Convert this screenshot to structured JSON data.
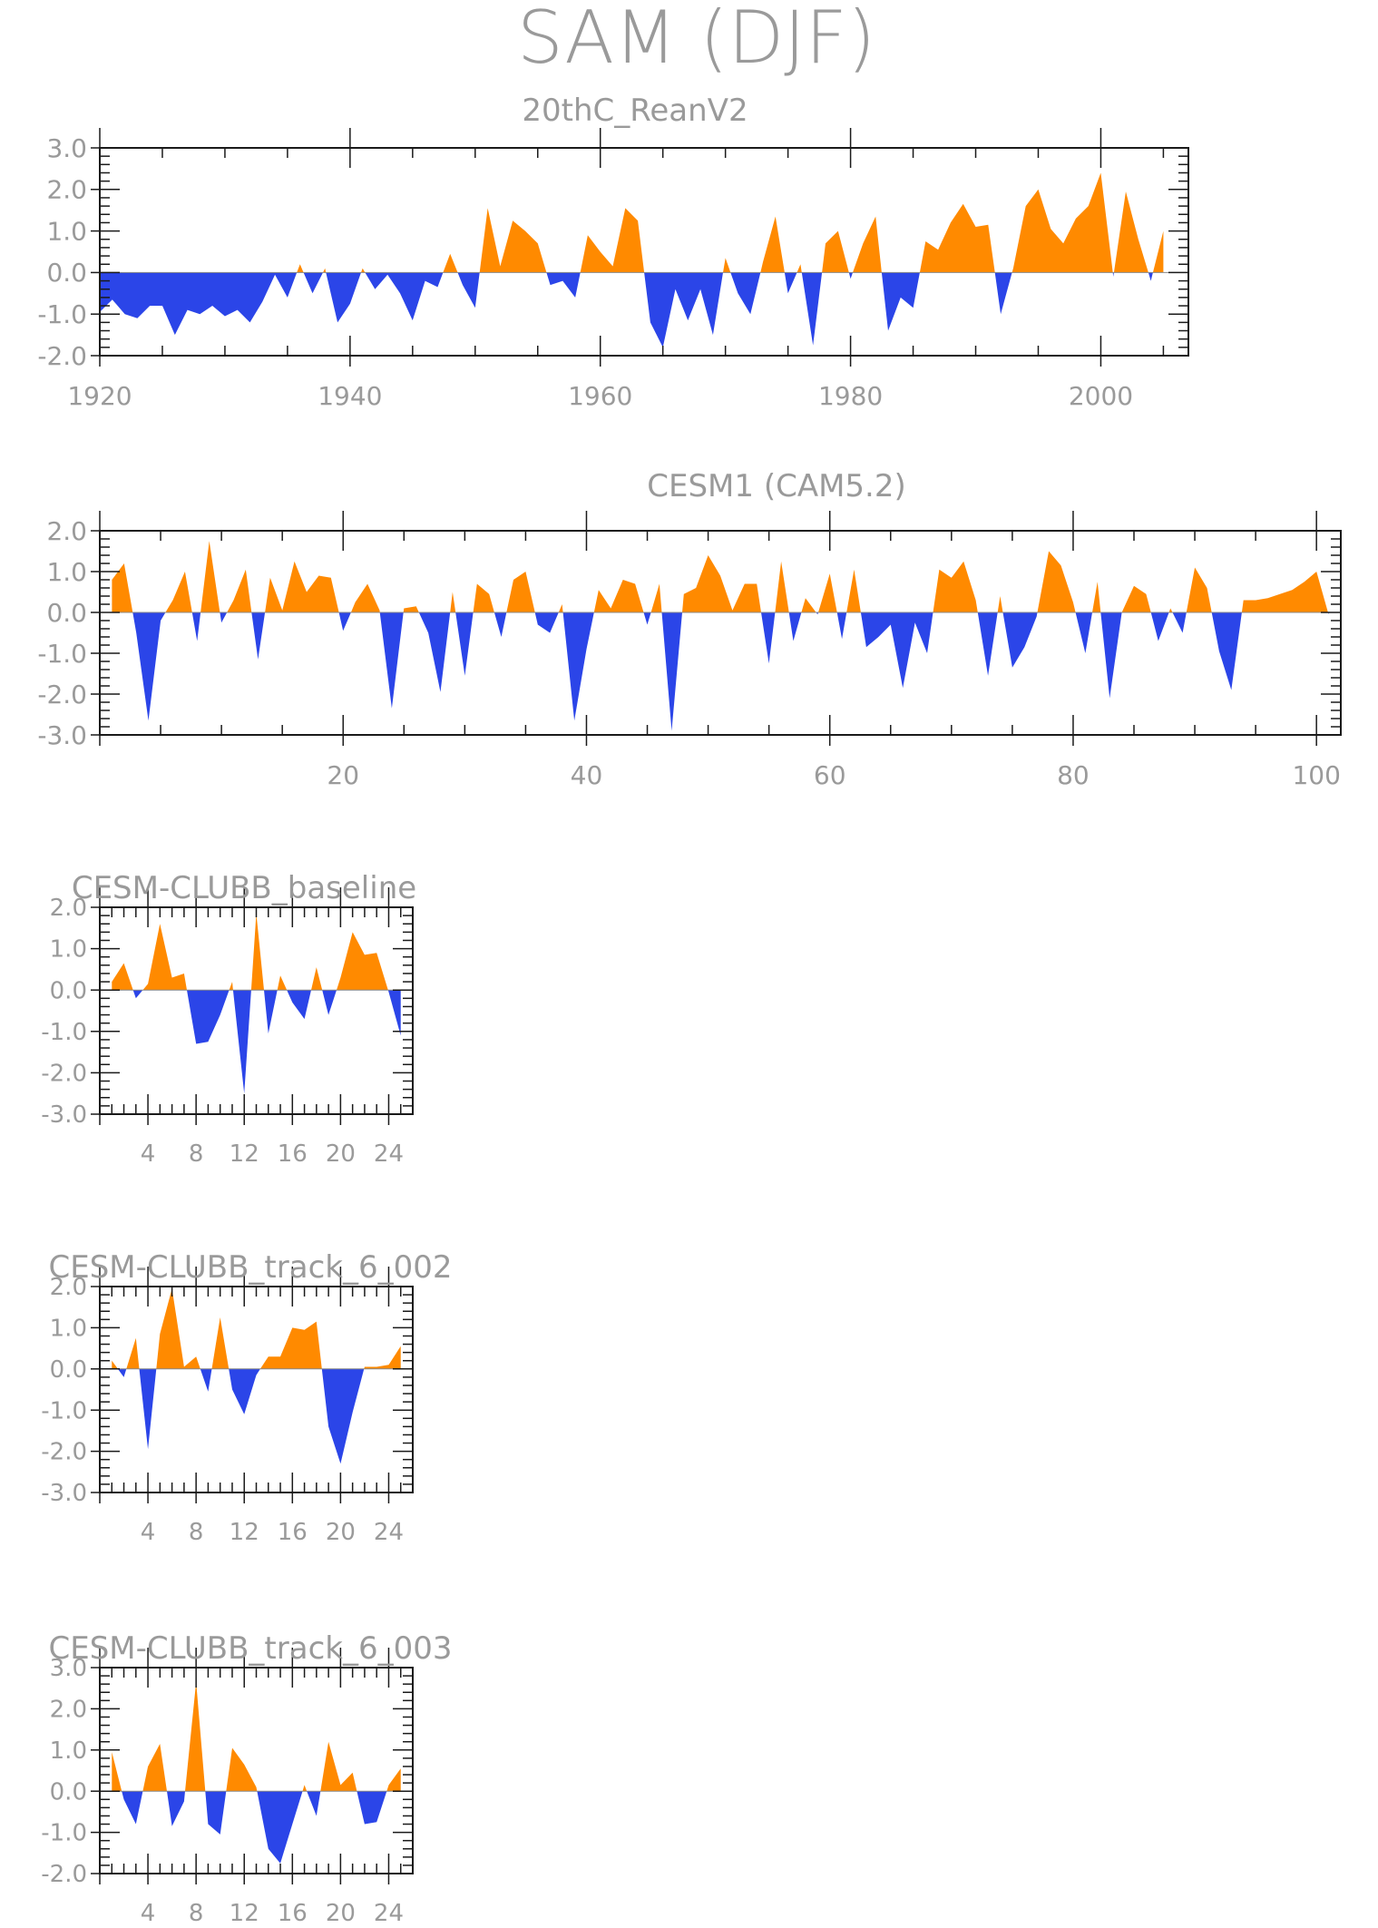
{
  "figure_title": "SAM (DJF)",
  "colors": {
    "positive": "#ff8a00",
    "negative": "#2b45e8",
    "frame": "#1a1a1a",
    "text": "#9a9a9a"
  },
  "chart_data": [
    {
      "type": "area",
      "title": "20thC_ReanV2",
      "baseline": 0,
      "ylim": [
        -2.0,
        3.0
      ],
      "yticks": [
        "3.0",
        "2.0",
        "1.0",
        "0.0",
        "-1.0",
        "-2.0"
      ],
      "xlim": [
        1920,
        2007
      ],
      "xticks": [
        "1920",
        "1940",
        "1960",
        "1980",
        "2000"
      ],
      "x": [
        1920,
        1921,
        1922,
        1923,
        1924,
        1925,
        1926,
        1927,
        1928,
        1929,
        1930,
        1931,
        1932,
        1933,
        1934,
        1935,
        1936,
        1937,
        1938,
        1939,
        1940,
        1941,
        1942,
        1943,
        1944,
        1945,
        1946,
        1947,
        1948,
        1949,
        1950,
        1951,
        1952,
        1953,
        1954,
        1955,
        1956,
        1957,
        1958,
        1959,
        1960,
        1961,
        1962,
        1963,
        1964,
        1965,
        1966,
        1967,
        1968,
        1969,
        1970,
        1971,
        1972,
        1973,
        1974,
        1975,
        1976,
        1977,
        1978,
        1979,
        1980,
        1981,
        1982,
        1983,
        1984,
        1985,
        1986,
        1987,
        1988,
        1989,
        1990,
        1991,
        1992,
        1993,
        1994,
        1995,
        1996,
        1997,
        1998,
        1999,
        2000,
        2001,
        2002,
        2003,
        2004,
        2005
      ],
      "values": [
        -0.95,
        -0.65,
        -1.0,
        -1.1,
        -0.8,
        -0.8,
        -1.5,
        -0.9,
        -1.0,
        -0.8,
        -1.05,
        -0.9,
        -1.2,
        -0.7,
        -0.05,
        -0.6,
        0.2,
        -0.5,
        0.1,
        -1.2,
        -0.75,
        0.1,
        -0.4,
        -0.05,
        -0.5,
        -1.15,
        -0.2,
        -0.35,
        0.45,
        -0.3,
        -0.85,
        1.55,
        0.15,
        1.25,
        1.0,
        0.7,
        -0.3,
        -0.2,
        -0.6,
        0.9,
        0.5,
        0.15,
        1.55,
        1.25,
        -1.2,
        -1.8,
        -0.4,
        -1.15,
        -0.4,
        -1.5,
        0.35,
        -0.5,
        -1.0,
        0.25,
        1.35,
        -0.5,
        0.2,
        -1.75,
        0.7,
        1.0,
        -0.15,
        0.7,
        1.35,
        -1.4,
        -0.6,
        -0.85,
        0.75,
        0.55,
        1.2,
        1.65,
        1.1,
        1.15,
        -1.0,
        0.1,
        1.6,
        2.0,
        1.05,
        0.7,
        1.3,
        1.6,
        2.4,
        -0.1,
        1.95,
        0.8,
        -0.2,
        1.0
      ]
    },
    {
      "type": "area",
      "title": "CESM1 (CAM5.2)",
      "baseline": 0,
      "ylim": [
        -3.0,
        2.0
      ],
      "yticks": [
        "2.0",
        "1.0",
        "0.0",
        "-1.0",
        "-2.0",
        "-3.0"
      ],
      "xlim": [
        0,
        102
      ],
      "xticks": [
        "20",
        "40",
        "60",
        "80",
        "100"
      ],
      "x": [
        1,
        2,
        3,
        4,
        5,
        6,
        7,
        8,
        9,
        10,
        11,
        12,
        13,
        14,
        15,
        16,
        17,
        18,
        19,
        20,
        21,
        22,
        23,
        24,
        25,
        26,
        27,
        28,
        29,
        30,
        31,
        32,
        33,
        34,
        35,
        36,
        37,
        38,
        39,
        40,
        41,
        42,
        43,
        44,
        45,
        46,
        47,
        48,
        49,
        50,
        51,
        52,
        53,
        54,
        55,
        56,
        57,
        58,
        59,
        60,
        61,
        62,
        63,
        64,
        65,
        66,
        67,
        68,
        69,
        70,
        71,
        72,
        73,
        74,
        75,
        76,
        77,
        78,
        79,
        80,
        81,
        82,
        83,
        84,
        85,
        86,
        87,
        88,
        89,
        90,
        91,
        92,
        93,
        94,
        95,
        96,
        97,
        98,
        99,
        100,
        101
      ],
      "values": [
        0.8,
        1.2,
        -0.5,
        -2.65,
        -0.2,
        0.3,
        1.0,
        -0.7,
        1.75,
        -0.25,
        0.3,
        1.05,
        -1.15,
        0.85,
        0.05,
        1.25,
        0.5,
        0.9,
        0.85,
        -0.45,
        0.25,
        0.7,
        0.05,
        -2.35,
        0.1,
        0.15,
        -0.5,
        -1.95,
        0.5,
        -1.55,
        0.7,
        0.45,
        -0.6,
        0.8,
        1.0,
        -0.3,
        -0.5,
        0.2,
        -2.65,
        -0.9,
        0.55,
        0.1,
        0.8,
        0.7,
        -0.3,
        0.7,
        -2.9,
        0.45,
        0.6,
        1.4,
        0.9,
        0.05,
        0.7,
        0.7,
        -1.25,
        1.25,
        -0.7,
        0.35,
        -0.05,
        0.95,
        -0.65,
        1.05,
        -0.85,
        -0.6,
        -0.3,
        -1.85,
        -0.25,
        -1.0,
        1.05,
        0.85,
        1.25,
        0.3,
        -1.55,
        0.4,
        -1.35,
        -0.85,
        -0.1,
        1.5,
        1.15,
        0.25,
        -1.0,
        0.75,
        -2.1,
        0.0,
        0.65,
        0.45,
        -0.7,
        0.1,
        -0.5,
        1.1,
        0.6,
        -0.95,
        -1.9,
        0.3,
        0.3,
        0.35,
        0.45,
        0.55,
        0.75,
        1.0,
        -0.05
      ]
    },
    {
      "type": "area",
      "title": "CESM-CLUBB_baseline",
      "baseline": 0,
      "ylim": [
        -3.0,
        2.0
      ],
      "yticks": [
        "2.0",
        "1.0",
        "0.0",
        "-1.0",
        "-2.0",
        "-3.0"
      ],
      "xlim": [
        0,
        26
      ],
      "xticks": [
        "4",
        "8",
        "12",
        "16",
        "20",
        "24"
      ],
      "x": [
        1,
        2,
        3,
        4,
        5,
        6,
        7,
        8,
        9,
        10,
        11,
        12,
        13,
        14,
        15,
        16,
        17,
        18,
        19,
        20,
        21,
        22,
        23,
        24,
        25
      ],
      "values": [
        0.2,
        0.65,
        -0.2,
        0.15,
        1.6,
        0.3,
        0.4,
        -1.3,
        -1.25,
        -0.6,
        0.2,
        -2.5,
        1.85,
        -1.05,
        0.35,
        -0.3,
        -0.7,
        0.55,
        -0.6,
        0.3,
        1.4,
        0.85,
        0.9,
        -0.05,
        -1.1
      ]
    },
    {
      "type": "area",
      "title": "CESM-CLUBB_track_6_002",
      "baseline": 0,
      "ylim": [
        -3.0,
        2.0
      ],
      "yticks": [
        "2.0",
        "1.0",
        "0.0",
        "-1.0",
        "-2.0",
        "-3.0"
      ],
      "xlim": [
        0,
        26
      ],
      "xticks": [
        "4",
        "8",
        "12",
        "16",
        "20",
        "24"
      ],
      "x": [
        1,
        2,
        3,
        4,
        5,
        6,
        7,
        8,
        9,
        10,
        11,
        12,
        13,
        14,
        15,
        16,
        17,
        18,
        19,
        20,
        21,
        22,
        23,
        24,
        25
      ],
      "values": [
        0.2,
        -0.2,
        0.75,
        -1.95,
        0.85,
        1.95,
        0.05,
        0.3,
        -0.55,
        1.25,
        -0.5,
        -1.1,
        -0.15,
        0.3,
        0.3,
        1.0,
        0.95,
        1.15,
        -1.4,
        -2.3,
        -1.05,
        0.05,
        0.05,
        0.1,
        0.55
      ]
    },
    {
      "type": "area",
      "title": "CESM-CLUBB_track_6_003",
      "baseline": 0,
      "ylim": [
        -2.0,
        3.0
      ],
      "yticks": [
        "3.0",
        "2.0",
        "1.0",
        "0.0",
        "-1.0",
        "-2.0"
      ],
      "xlim": [
        0,
        26
      ],
      "xticks": [
        "4",
        "8",
        "12",
        "16",
        "20",
        "24"
      ],
      "x": [
        1,
        2,
        3,
        4,
        5,
        6,
        7,
        8,
        9,
        10,
        11,
        12,
        13,
        14,
        15,
        16,
        17,
        18,
        19,
        20,
        21,
        22,
        23,
        24,
        25
      ],
      "values": [
        0.95,
        -0.2,
        -0.8,
        0.6,
        1.15,
        -0.85,
        -0.25,
        2.65,
        -0.8,
        -1.05,
        1.05,
        0.65,
        0.1,
        -1.4,
        -1.75,
        -0.8,
        0.15,
        -0.6,
        1.2,
        0.15,
        0.45,
        -0.8,
        -0.75,
        0.15,
        0.55
      ]
    }
  ]
}
